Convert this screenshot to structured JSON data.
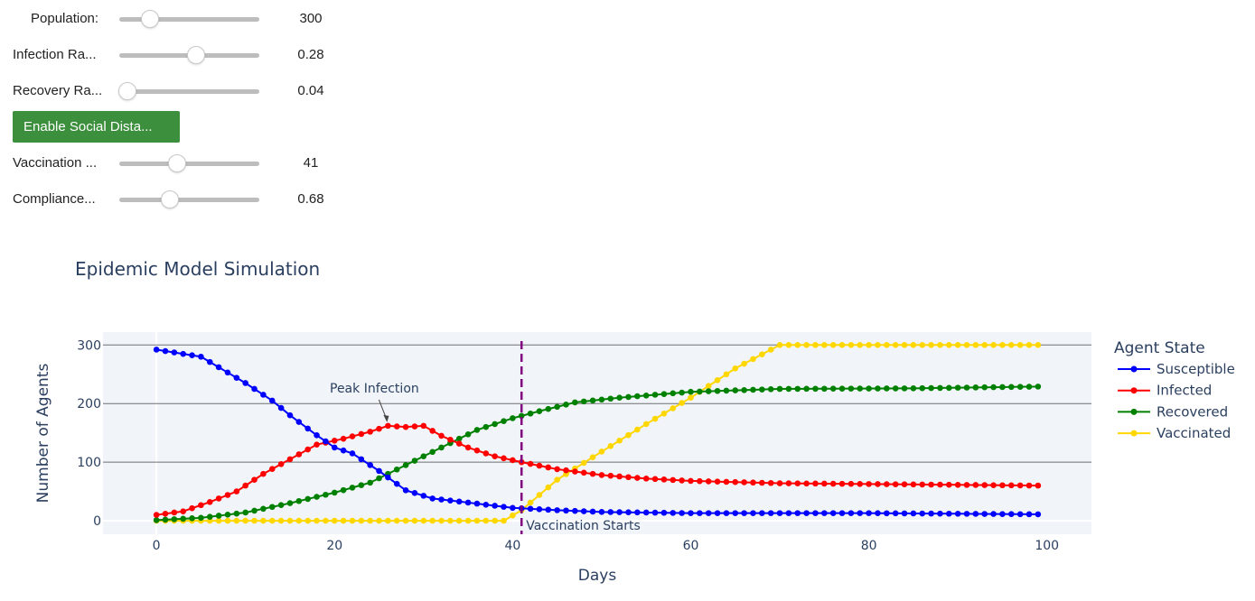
{
  "controls": {
    "sliders": [
      {
        "label": "Population:",
        "value": "300",
        "fraction": 0.22
      },
      {
        "label": "Infection Ra...",
        "value": "0.28",
        "fraction": 0.55
      },
      {
        "label": "Recovery Ra...",
        "value": "0.04",
        "fraction": 0.06
      },
      {
        "label": "Vaccination ...",
        "value": "41",
        "fraction": 0.41
      },
      {
        "label": "Compliance...",
        "value": "0.68",
        "fraction": 0.36
      }
    ],
    "button_label": "Enable Social Dista...",
    "button_color": "#3c8f3c"
  },
  "chart_data": {
    "type": "line",
    "title": "Epidemic Model Simulation",
    "xlabel": "Days",
    "ylabel": "Number of Agents",
    "xlim": [
      -6,
      105
    ],
    "ylim": [
      -23,
      322
    ],
    "xticks": [
      0,
      20,
      40,
      60,
      80,
      100
    ],
    "yticks": [
      0,
      100,
      200,
      300
    ],
    "grid": true,
    "legend": {
      "title": "Agent State",
      "position": "right"
    },
    "series": [
      {
        "name": "Susceptible",
        "color": "#0000ff",
        "anchors": [
          [
            0,
            292
          ],
          [
            5,
            280
          ],
          [
            10,
            235
          ],
          [
            13,
            205
          ],
          [
            15,
            180
          ],
          [
            18,
            146
          ],
          [
            20,
            125
          ],
          [
            22,
            115
          ],
          [
            25,
            85
          ],
          [
            28,
            52
          ],
          [
            31,
            38
          ],
          [
            35,
            31
          ],
          [
            40,
            22
          ],
          [
            45,
            18
          ],
          [
            50,
            15
          ],
          [
            60,
            13
          ],
          [
            80,
            13
          ],
          [
            99,
            11
          ]
        ]
      },
      {
        "name": "Infected",
        "color": "#ff0000",
        "anchors": [
          [
            0,
            10
          ],
          [
            3,
            16
          ],
          [
            6,
            32
          ],
          [
            9,
            50
          ],
          [
            12,
            80
          ],
          [
            15,
            105
          ],
          [
            18,
            130
          ],
          [
            21,
            140
          ],
          [
            24,
            152
          ],
          [
            26,
            162
          ],
          [
            28,
            160
          ],
          [
            30,
            162
          ],
          [
            32,
            145
          ],
          [
            35,
            125
          ],
          [
            38,
            110
          ],
          [
            41,
            100
          ],
          [
            45,
            88
          ],
          [
            50,
            78
          ],
          [
            55,
            72
          ],
          [
            60,
            68
          ],
          [
            70,
            64
          ],
          [
            85,
            62
          ],
          [
            99,
            60
          ]
        ]
      },
      {
        "name": "Recovered",
        "color": "#008000",
        "anchors": [
          [
            0,
            1
          ],
          [
            5,
            5
          ],
          [
            10,
            14
          ],
          [
            15,
            30
          ],
          [
            20,
            48
          ],
          [
            24,
            65
          ],
          [
            28,
            95
          ],
          [
            32,
            125
          ],
          [
            36,
            155
          ],
          [
            40,
            175
          ],
          [
            43,
            187
          ],
          [
            47,
            202
          ],
          [
            52,
            210
          ],
          [
            60,
            220
          ],
          [
            70,
            225
          ],
          [
            85,
            226
          ],
          [
            99,
            229
          ]
        ]
      },
      {
        "name": "Vaccinated",
        "color": "#ffd700",
        "anchors": [
          [
            0,
            0
          ],
          [
            39,
            0
          ],
          [
            41,
            18
          ],
          [
            45,
            70
          ],
          [
            50,
            118
          ],
          [
            55,
            165
          ],
          [
            60,
            210
          ],
          [
            65,
            260
          ],
          [
            70,
            300
          ],
          [
            99,
            300
          ]
        ]
      }
    ],
    "vline": {
      "x": 41,
      "label": "Vaccination Starts",
      "color": "#800080"
    },
    "annotation": {
      "text": "Peak Infection",
      "x": 26,
      "y": 162
    }
  }
}
